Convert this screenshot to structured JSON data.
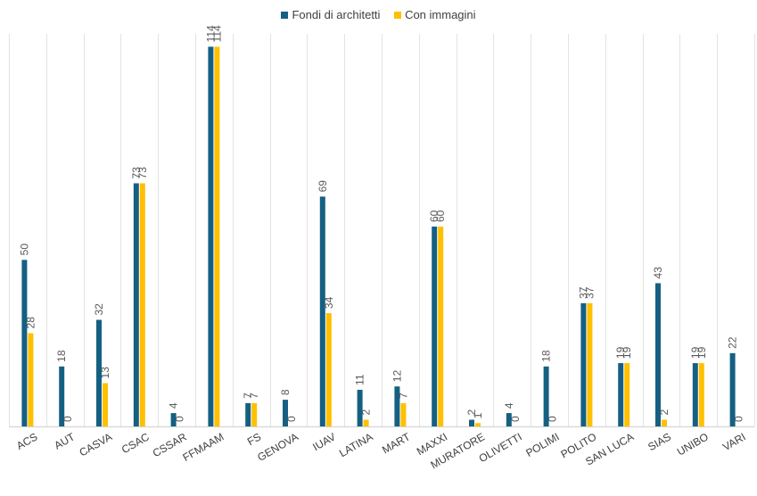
{
  "chart_data": {
    "type": "bar",
    "title": "",
    "xlabel": "",
    "ylabel": "",
    "ylim": [
      0,
      120
    ],
    "grid": "vertical category separators",
    "legend_position": "top",
    "categories": [
      "ACS",
      "AUT",
      "CASVA",
      "CSAC",
      "CSSAR",
      "FFMAAM",
      "FS",
      "GENOVA",
      "IUAV",
      "LATINA",
      "MART",
      "MAXXI",
      "MURATORE",
      "OLIVETTI",
      "POLIMI",
      "POLITO",
      "SAN LUCA",
      "SIAS",
      "UNIBO",
      "VARI"
    ],
    "series": [
      {
        "name": "Fondi di architetti",
        "color": "#156082",
        "values": [
          50,
          18,
          32,
          73,
          4,
          114,
          7,
          8,
          69,
          11,
          12,
          60,
          2,
          4,
          18,
          37,
          19,
          43,
          19,
          22
        ]
      },
      {
        "name": "Con immagini",
        "color": "#FFC000",
        "values": [
          28,
          0,
          13,
          73,
          0,
          114,
          7,
          0,
          34,
          2,
          7,
          60,
          1,
          0,
          0,
          37,
          19,
          2,
          19,
          0
        ]
      }
    ]
  }
}
